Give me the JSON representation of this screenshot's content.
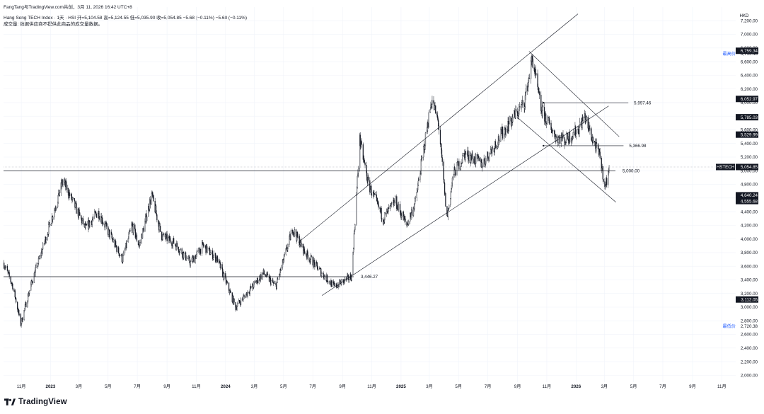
{
  "header": {
    "line1": "FangTang与TradingView.com共创，3月 11, 2026 16:42 UTC+8",
    "line2": "Hang Seng TECH Index · 1天 · HSI  开=5,104.58  高=5,124.55  低=5,035.90  收=5,054.85  −5.68 (−0.11%)  −5.68 (−0.11%)",
    "line3": "成交量: 数据供应商不提供此商品的成交量数据。"
  },
  "currency": "HKD",
  "brand": "TradingView",
  "colors": {
    "candle": "#131722",
    "grid": "#f0f3fa",
    "label_bg": "#131722",
    "label_text": "#ffffff"
  },
  "chart_data": {
    "type": "candlestick",
    "symbol": "HSTECH",
    "y_range": [
      1900,
      7400
    ],
    "y_ticks": [
      "2,000.00",
      "2,200.00",
      "2,400.00",
      "2,600.00",
      "2,800.00",
      "3,000.00",
      "3,200.00",
      "3,400.00",
      "3,600.00",
      "3,800.00",
      "4,000.00",
      "4,200.00",
      "4,400.00",
      "4,600.00",
      "4,800.00",
      "5,000.00",
      "5,200.00",
      "5,400.00",
      "5,600.00",
      "5,800.00",
      "6,000.00",
      "6,200.00",
      "6,400.00",
      "6,600.00",
      "6,800.00",
      "7,000.00",
      "7,200.00"
    ],
    "y_tick_values": [
      2000,
      2200,
      2400,
      2600,
      2800,
      3000,
      3200,
      3400,
      3600,
      3800,
      4000,
      4200,
      4400,
      4600,
      4800,
      5000,
      5200,
      5400,
      5600,
      5800,
      6000,
      6200,
      6400,
      6600,
      6800,
      7000,
      7200
    ],
    "x_range": [
      "2022-09-25",
      "2026-11-30"
    ],
    "x_ticks": [
      {
        "label": "11月",
        "date": "2022-11-01",
        "bold": false
      },
      {
        "label": "2023",
        "date": "2023-01-01",
        "bold": true
      },
      {
        "label": "3月",
        "date": "2023-03-01",
        "bold": false
      },
      {
        "label": "5月",
        "date": "2023-05-01",
        "bold": false
      },
      {
        "label": "7月",
        "date": "2023-07-01",
        "bold": false
      },
      {
        "label": "9月",
        "date": "2023-09-01",
        "bold": false
      },
      {
        "label": "11月",
        "date": "2023-11-01",
        "bold": false
      },
      {
        "label": "2024",
        "date": "2024-01-01",
        "bold": true
      },
      {
        "label": "3月",
        "date": "2024-03-01",
        "bold": false
      },
      {
        "label": "5月",
        "date": "2024-05-01",
        "bold": false
      },
      {
        "label": "7月",
        "date": "2024-07-01",
        "bold": false
      },
      {
        "label": "9月",
        "date": "2024-09-01",
        "bold": false
      },
      {
        "label": "11月",
        "date": "2024-11-01",
        "bold": false
      },
      {
        "label": "2025",
        "date": "2025-01-01",
        "bold": true
      },
      {
        "label": "3月",
        "date": "2025-03-01",
        "bold": false
      },
      {
        "label": "5月",
        "date": "2025-05-01",
        "bold": false
      },
      {
        "label": "7月",
        "date": "2025-07-01",
        "bold": false
      },
      {
        "label": "9月",
        "date": "2025-09-01",
        "bold": false
      },
      {
        "label": "11月",
        "date": "2025-11-01",
        "bold": false
      },
      {
        "label": "2026",
        "date": "2026-01-01",
        "bold": true
      },
      {
        "label": "3月",
        "date": "2026-03-01",
        "bold": false
      },
      {
        "label": "5月",
        "date": "2026-05-01",
        "bold": false
      },
      {
        "label": "7月",
        "date": "2026-07-01",
        "bold": false
      },
      {
        "label": "9月",
        "date": "2026-09-01",
        "bold": false
      },
      {
        "label": "11月",
        "date": "2026-11-01",
        "bold": false
      }
    ],
    "price_path": [
      [
        "2022-09-25",
        3650
      ],
      [
        "2022-10-15",
        3300
      ],
      [
        "2022-10-31",
        2750
      ],
      [
        "2022-11-20",
        3300
      ],
      [
        "2022-12-15",
        3850
      ],
      [
        "2023-01-27",
        4850
      ],
      [
        "2023-03-15",
        4150
      ],
      [
        "2023-04-10",
        4400
      ],
      [
        "2023-05-31",
        3700
      ],
      [
        "2023-06-20",
        4200
      ],
      [
        "2023-07-05",
        3900
      ],
      [
        "2023-07-31",
        4650
      ],
      [
        "2023-08-20",
        4050
      ],
      [
        "2023-09-15",
        3950
      ],
      [
        "2023-10-20",
        3650
      ],
      [
        "2023-11-15",
        3900
      ],
      [
        "2023-12-15",
        3700
      ],
      [
        "2024-01-22",
        3000
      ],
      [
        "2024-02-20",
        3250
      ],
      [
        "2024-03-20",
        3500
      ],
      [
        "2024-04-15",
        3300
      ],
      [
        "2024-05-20",
        4150
      ],
      [
        "2024-06-15",
        3800
      ],
      [
        "2024-07-20",
        3500
      ],
      [
        "2024-08-15",
        3300
      ],
      [
        "2024-09-20",
        3450
      ],
      [
        "2024-10-07",
        5450
      ],
      [
        "2024-10-25",
        4800
      ],
      [
        "2024-11-25",
        4300
      ],
      [
        "2024-12-20",
        4550
      ],
      [
        "2025-01-13",
        4200
      ],
      [
        "2025-01-31",
        4550
      ],
      [
        "2025-03-06",
        6050
      ],
      [
        "2025-03-20",
        5700
      ],
      [
        "2025-04-07",
        4300
      ],
      [
        "2025-04-20",
        4950
      ],
      [
        "2025-05-15",
        5250
      ],
      [
        "2025-06-20",
        5100
      ],
      [
        "2025-07-31",
        5550
      ],
      [
        "2025-09-15",
        6000
      ],
      [
        "2025-10-02",
        6650
      ],
      [
        "2025-10-20",
        5900
      ],
      [
        "2025-11-20",
        5500
      ],
      [
        "2025-12-10",
        5450
      ],
      [
        "2026-01-05",
        5600
      ],
      [
        "2026-01-19",
        5800
      ],
      [
        "2026-02-05",
        5450
      ],
      [
        "2026-02-20",
        5200
      ],
      [
        "2026-03-03",
        4750
      ],
      [
        "2026-03-11",
        5055
      ]
    ],
    "horizontal_lines": [
      {
        "price": 5000,
        "label": "5,000.00"
      },
      {
        "price": 3446.27,
        "label": "3,446.27"
      }
    ],
    "marked_levels": [
      {
        "price": 5997.46,
        "label": "5,997.46"
      },
      {
        "price": 5366.98,
        "label": "5,366.98"
      }
    ],
    "price_labels": [
      {
        "price": 6759.34,
        "label": "6,759.34"
      },
      {
        "price": 6052.97,
        "label": "6,052.97"
      },
      {
        "price": 5785.03,
        "label": "5,785.03"
      },
      {
        "price": 5529.99,
        "label": "5,529.99"
      },
      {
        "price": 4640.24,
        "label": "4,640.24"
      },
      {
        "price": 4555.68,
        "label": "4,555.68"
      },
      {
        "price": 3112.05,
        "label": "3,112.05"
      }
    ],
    "current": {
      "price": 5054.85,
      "label": "5,054.85",
      "symbol": "HSTECH"
    },
    "high": {
      "price": 6715.46,
      "label": "6,715.46",
      "caption": "最高价"
    },
    "low": {
      "price": 2720.38,
      "label": "2,720.38",
      "caption": "最低价"
    }
  }
}
